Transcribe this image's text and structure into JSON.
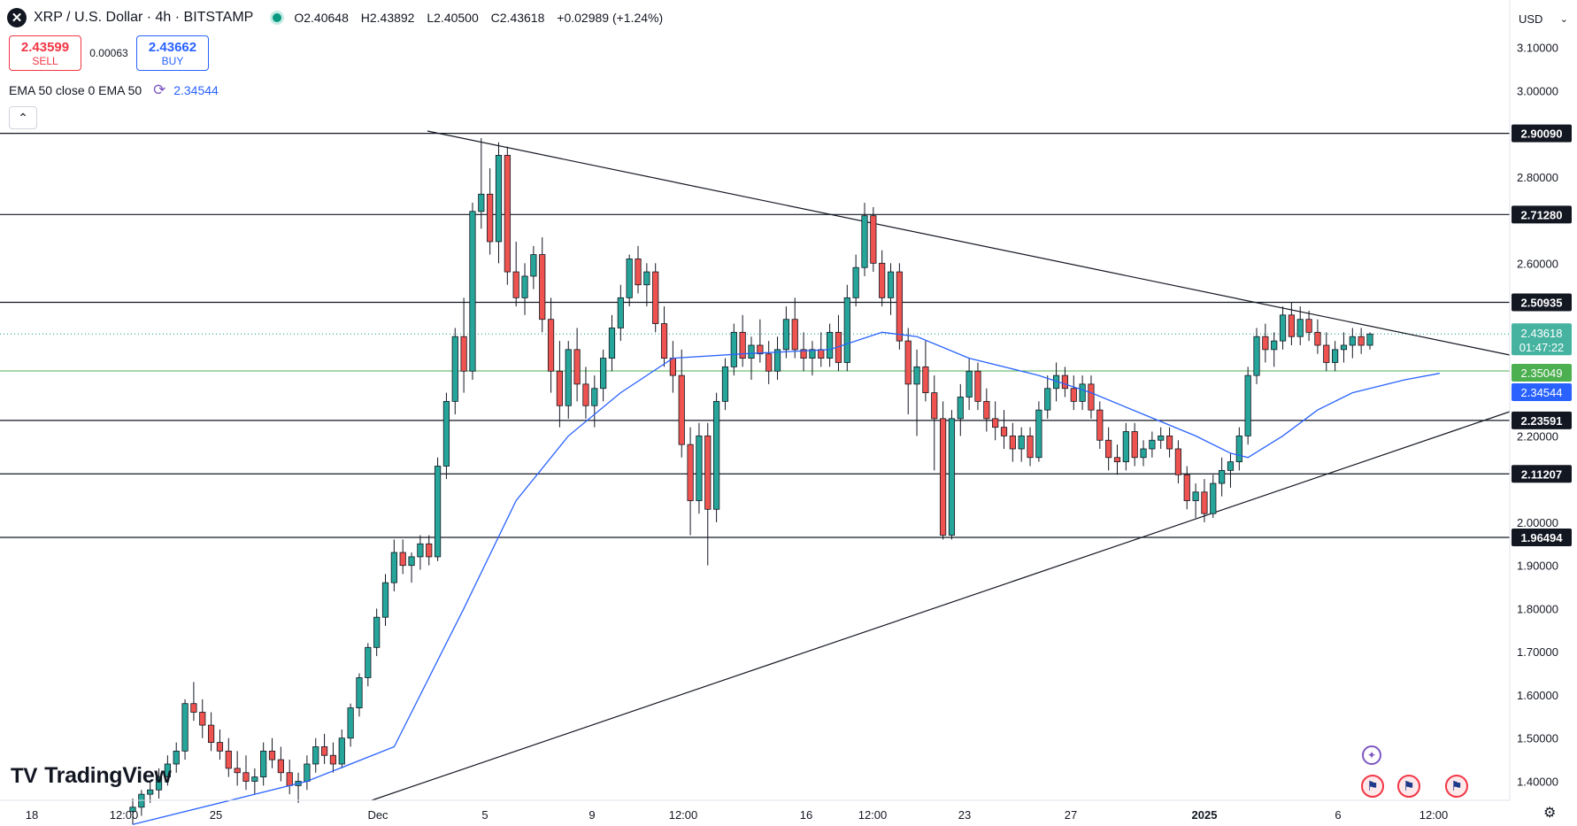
{
  "header": {
    "symbol_icon": "x-logo-icon",
    "title": "XRP / U.S. Dollar · 4h · BITSTAMP",
    "ohlc": {
      "o": "O2.40648",
      "h": "H2.43892",
      "l": "L2.40500",
      "c": "C2.43618",
      "change": "+0.02989 (+1.24%)"
    }
  },
  "trade": {
    "sell_price": "2.43599",
    "sell_label": "SELL",
    "spread": "0.00063",
    "buy_price": "2.43662",
    "buy_label": "BUY"
  },
  "indicator": {
    "label": "EMA 50 close 0 EMA 50",
    "value": "2.34544"
  },
  "scale": {
    "currency": "USD"
  },
  "logo_text": "TradingView",
  "colors": {
    "up": "#089981",
    "down": "#f23645",
    "ema": "#2962ff",
    "accent": "#2962ff"
  },
  "chart_data": {
    "type": "candlestick",
    "timeframe": "4h",
    "ylim": [
      1.36,
      3.14
    ],
    "x_tick_labels": [
      "18",
      "12:00",
      "25",
      "Dec",
      "5",
      "9",
      "12:00",
      "16",
      "12:00",
      "23",
      "27",
      "2025",
      "6",
      "12:00"
    ],
    "y_tick_labels": [
      "3.10000",
      "3.00000",
      "2.80000",
      "2.60000",
      "2.20000",
      "2.00000",
      "1.90000",
      "1.80000",
      "1.70000",
      "1.60000",
      "1.50000",
      "1.40000"
    ],
    "y_ticks": [
      3.1,
      3.0,
      2.8,
      2.6,
      2.2,
      2.0,
      1.9,
      1.8,
      1.7,
      1.6,
      1.5,
      1.4
    ],
    "horizontal_levels": [
      {
        "value": 2.9009,
        "label": "2.90090"
      },
      {
        "value": 2.7128,
        "label": "2.71280"
      },
      {
        "value": 2.50935,
        "label": "2.50935"
      },
      {
        "value": 2.23591,
        "label": "2.23591"
      },
      {
        "value": 2.11207,
        "label": "2.11207"
      },
      {
        "value": 1.96494,
        "label": "1.96494"
      }
    ],
    "price_marker": {
      "value": 2.43618,
      "label": "2.43618",
      "countdown": "01:47:22"
    },
    "green_level": {
      "value": 2.35049,
      "label": "2.35049"
    },
    "ema_marker": {
      "value": 2.34544,
      "label": "2.34544"
    },
    "trendlines": [
      {
        "name": "descending resistance",
        "from": [
          0,
          2.9
        ],
        "to": [
          1,
          2.38
        ]
      },
      {
        "name": "ascending support",
        "from": [
          0,
          1.36
        ],
        "to": [
          1,
          2.26
        ]
      }
    ],
    "candles": [
      [
        1.33,
        1.36,
        1.3,
        1.34
      ],
      [
        1.34,
        1.38,
        1.32,
        1.37
      ],
      [
        1.37,
        1.4,
        1.35,
        1.38
      ],
      [
        1.38,
        1.43,
        1.36,
        1.41
      ],
      [
        1.41,
        1.46,
        1.39,
        1.44
      ],
      [
        1.44,
        1.49,
        1.42,
        1.47
      ],
      [
        1.47,
        1.59,
        1.45,
        1.58
      ],
      [
        1.58,
        1.63,
        1.54,
        1.56
      ],
      [
        1.56,
        1.59,
        1.5,
        1.53
      ],
      [
        1.53,
        1.56,
        1.47,
        1.49
      ],
      [
        1.49,
        1.52,
        1.45,
        1.47
      ],
      [
        1.47,
        1.5,
        1.41,
        1.43
      ],
      [
        1.43,
        1.47,
        1.39,
        1.42
      ],
      [
        1.42,
        1.46,
        1.38,
        1.4
      ],
      [
        1.4,
        1.43,
        1.37,
        1.41
      ],
      [
        1.41,
        1.49,
        1.39,
        1.47
      ],
      [
        1.47,
        1.5,
        1.43,
        1.45
      ],
      [
        1.45,
        1.48,
        1.4,
        1.42
      ],
      [
        1.42,
        1.45,
        1.37,
        1.39
      ],
      [
        1.39,
        1.42,
        1.35,
        1.4
      ],
      [
        1.4,
        1.46,
        1.38,
        1.44
      ],
      [
        1.44,
        1.5,
        1.42,
        1.48
      ],
      [
        1.48,
        1.51,
        1.44,
        1.46
      ],
      [
        1.46,
        1.49,
        1.42,
        1.44
      ],
      [
        1.44,
        1.52,
        1.43,
        1.5
      ],
      [
        1.5,
        1.58,
        1.48,
        1.57
      ],
      [
        1.57,
        1.65,
        1.55,
        1.64
      ],
      [
        1.64,
        1.72,
        1.62,
        1.71
      ],
      [
        1.71,
        1.8,
        1.69,
        1.78
      ],
      [
        1.78,
        1.88,
        1.76,
        1.86
      ],
      [
        1.86,
        1.96,
        1.84,
        1.93
      ],
      [
        1.93,
        1.96,
        1.88,
        1.9
      ],
      [
        1.9,
        1.93,
        1.86,
        1.92
      ],
      [
        1.92,
        1.97,
        1.89,
        1.95
      ],
      [
        1.95,
        1.97,
        1.9,
        1.92
      ],
      [
        1.92,
        2.15,
        1.91,
        2.13
      ],
      [
        2.13,
        2.3,
        2.1,
        2.28
      ],
      [
        2.28,
        2.45,
        2.25,
        2.43
      ],
      [
        2.43,
        2.52,
        2.3,
        2.35
      ],
      [
        2.35,
        2.74,
        2.33,
        2.72
      ],
      [
        2.72,
        2.89,
        2.68,
        2.76
      ],
      [
        2.76,
        2.82,
        2.62,
        2.65
      ],
      [
        2.65,
        2.88,
        2.6,
        2.85
      ],
      [
        2.85,
        2.87,
        2.55,
        2.58
      ],
      [
        2.58,
        2.65,
        2.5,
        2.52
      ],
      [
        2.52,
        2.6,
        2.48,
        2.57
      ],
      [
        2.57,
        2.64,
        2.54,
        2.62
      ],
      [
        2.62,
        2.66,
        2.44,
        2.47
      ],
      [
        2.47,
        2.52,
        2.3,
        2.35
      ],
      [
        2.35,
        2.42,
        2.22,
        2.27
      ],
      [
        2.27,
        2.42,
        2.24,
        2.4
      ],
      [
        2.4,
        2.45,
        2.28,
        2.32
      ],
      [
        2.32,
        2.36,
        2.24,
        2.27
      ],
      [
        2.27,
        2.34,
        2.22,
        2.31
      ],
      [
        2.31,
        2.4,
        2.28,
        2.38
      ],
      [
        2.38,
        2.48,
        2.35,
        2.45
      ],
      [
        2.45,
        2.55,
        2.42,
        2.52
      ],
      [
        2.52,
        2.62,
        2.5,
        2.61
      ],
      [
        2.61,
        2.64,
        2.53,
        2.55
      ],
      [
        2.55,
        2.6,
        2.5,
        2.58
      ],
      [
        2.58,
        2.6,
        2.44,
        2.46
      ],
      [
        2.46,
        2.5,
        2.36,
        2.38
      ],
      [
        2.38,
        2.42,
        2.3,
        2.34
      ],
      [
        2.34,
        2.4,
        2.15,
        2.18
      ],
      [
        2.18,
        2.22,
        1.97,
        2.05
      ],
      [
        2.05,
        2.23,
        2.02,
        2.2
      ],
      [
        2.2,
        2.23,
        1.9,
        2.03
      ],
      [
        2.03,
        2.3,
        2.0,
        2.28
      ],
      [
        2.28,
        2.38,
        2.26,
        2.36
      ],
      [
        2.36,
        2.46,
        2.34,
        2.44
      ],
      [
        2.44,
        2.48,
        2.36,
        2.38
      ],
      [
        2.38,
        2.43,
        2.33,
        2.41
      ],
      [
        2.41,
        2.47,
        2.37,
        2.39
      ],
      [
        2.39,
        2.42,
        2.32,
        2.35
      ],
      [
        2.35,
        2.43,
        2.33,
        2.4
      ],
      [
        2.4,
        2.5,
        2.38,
        2.47
      ],
      [
        2.47,
        2.52,
        2.38,
        2.4
      ],
      [
        2.4,
        2.44,
        2.35,
        2.38
      ],
      [
        2.38,
        2.42,
        2.34,
        2.4
      ],
      [
        2.4,
        2.44,
        2.36,
        2.38
      ],
      [
        2.38,
        2.46,
        2.36,
        2.44
      ],
      [
        2.44,
        2.48,
        2.35,
        2.37
      ],
      [
        2.37,
        2.55,
        2.35,
        2.52
      ],
      [
        2.52,
        2.62,
        2.5,
        2.59
      ],
      [
        2.59,
        2.74,
        2.57,
        2.71
      ],
      [
        2.71,
        2.73,
        2.58,
        2.6
      ],
      [
        2.6,
        2.63,
        2.5,
        2.52
      ],
      [
        2.52,
        2.6,
        2.48,
        2.58
      ],
      [
        2.58,
        2.6,
        2.4,
        2.42
      ],
      [
        2.42,
        2.45,
        2.25,
        2.32
      ],
      [
        2.32,
        2.4,
        2.2,
        2.36
      ],
      [
        2.36,
        2.42,
        2.28,
        2.3
      ],
      [
        2.3,
        2.34,
        2.12,
        2.24
      ],
      [
        2.24,
        2.28,
        1.96,
        1.97
      ],
      [
        1.97,
        2.26,
        1.96,
        2.24
      ],
      [
        2.24,
        2.32,
        2.2,
        2.29
      ],
      [
        2.29,
        2.38,
        2.26,
        2.35
      ],
      [
        2.35,
        2.37,
        2.26,
        2.28
      ],
      [
        2.28,
        2.31,
        2.21,
        2.24
      ],
      [
        2.24,
        2.28,
        2.19,
        2.22
      ],
      [
        2.22,
        2.26,
        2.17,
        2.2
      ],
      [
        2.2,
        2.23,
        2.14,
        2.17
      ],
      [
        2.17,
        2.22,
        2.14,
        2.2
      ],
      [
        2.2,
        2.22,
        2.13,
        2.15
      ],
      [
        2.15,
        2.28,
        2.14,
        2.26
      ],
      [
        2.26,
        2.34,
        2.24,
        2.31
      ],
      [
        2.31,
        2.37,
        2.28,
        2.34
      ],
      [
        2.34,
        2.36,
        2.29,
        2.31
      ],
      [
        2.31,
        2.34,
        2.26,
        2.28
      ],
      [
        2.28,
        2.34,
        2.26,
        2.32
      ],
      [
        2.32,
        2.34,
        2.24,
        2.26
      ],
      [
        2.26,
        2.28,
        2.17,
        2.19
      ],
      [
        2.19,
        2.22,
        2.12,
        2.15
      ],
      [
        2.15,
        2.18,
        2.11,
        2.14
      ],
      [
        2.14,
        2.23,
        2.12,
        2.21
      ],
      [
        2.21,
        2.23,
        2.13,
        2.15
      ],
      [
        2.15,
        2.19,
        2.13,
        2.17
      ],
      [
        2.17,
        2.21,
        2.15,
        2.19
      ],
      [
        2.19,
        2.22,
        2.17,
        2.2
      ],
      [
        2.2,
        2.22,
        2.15,
        2.17
      ],
      [
        2.17,
        2.19,
        2.09,
        2.11
      ],
      [
        2.11,
        2.13,
        2.03,
        2.05
      ],
      [
        2.05,
        2.09,
        2.01,
        2.07
      ],
      [
        2.07,
        2.1,
        2.0,
        2.02
      ],
      [
        2.02,
        2.11,
        2.01,
        2.09
      ],
      [
        2.09,
        2.15,
        2.06,
        2.12
      ],
      [
        2.12,
        2.16,
        2.08,
        2.14
      ],
      [
        2.14,
        2.22,
        2.12,
        2.2
      ],
      [
        2.2,
        2.36,
        2.18,
        2.34
      ],
      [
        2.34,
        2.45,
        2.32,
        2.43
      ],
      [
        2.43,
        2.46,
        2.37,
        2.4
      ],
      [
        2.4,
        2.44,
        2.36,
        2.42
      ],
      [
        2.42,
        2.5,
        2.4,
        2.48
      ],
      [
        2.48,
        2.51,
        2.41,
        2.43
      ],
      [
        2.43,
        2.5,
        2.41,
        2.47
      ],
      [
        2.47,
        2.49,
        2.42,
        2.44
      ],
      [
        2.44,
        2.47,
        2.39,
        2.41
      ],
      [
        2.41,
        2.44,
        2.35,
        2.37
      ],
      [
        2.37,
        2.42,
        2.35,
        2.4
      ],
      [
        2.4,
        2.44,
        2.37,
        2.41
      ],
      [
        2.41,
        2.45,
        2.38,
        2.43
      ],
      [
        2.43,
        2.45,
        2.39,
        2.41
      ],
      [
        2.41,
        2.44,
        2.4,
        2.436
      ]
    ],
    "ema50": [
      [
        0,
        1.3
      ],
      [
        20,
        1.4
      ],
      [
        30,
        1.48
      ],
      [
        38,
        1.8
      ],
      [
        44,
        2.05
      ],
      [
        50,
        2.2
      ],
      [
        56,
        2.3
      ],
      [
        62,
        2.38
      ],
      [
        70,
        2.39
      ],
      [
        80,
        2.4
      ],
      [
        86,
        2.44
      ],
      [
        90,
        2.43
      ],
      [
        96,
        2.38
      ],
      [
        104,
        2.34
      ],
      [
        110,
        2.3
      ],
      [
        116,
        2.25
      ],
      [
        122,
        2.2
      ],
      [
        126,
        2.16
      ],
      [
        128,
        2.15
      ],
      [
        132,
        2.2
      ],
      [
        136,
        2.26
      ],
      [
        140,
        2.3
      ],
      [
        146,
        2.33
      ],
      [
        150,
        2.345
      ]
    ]
  }
}
